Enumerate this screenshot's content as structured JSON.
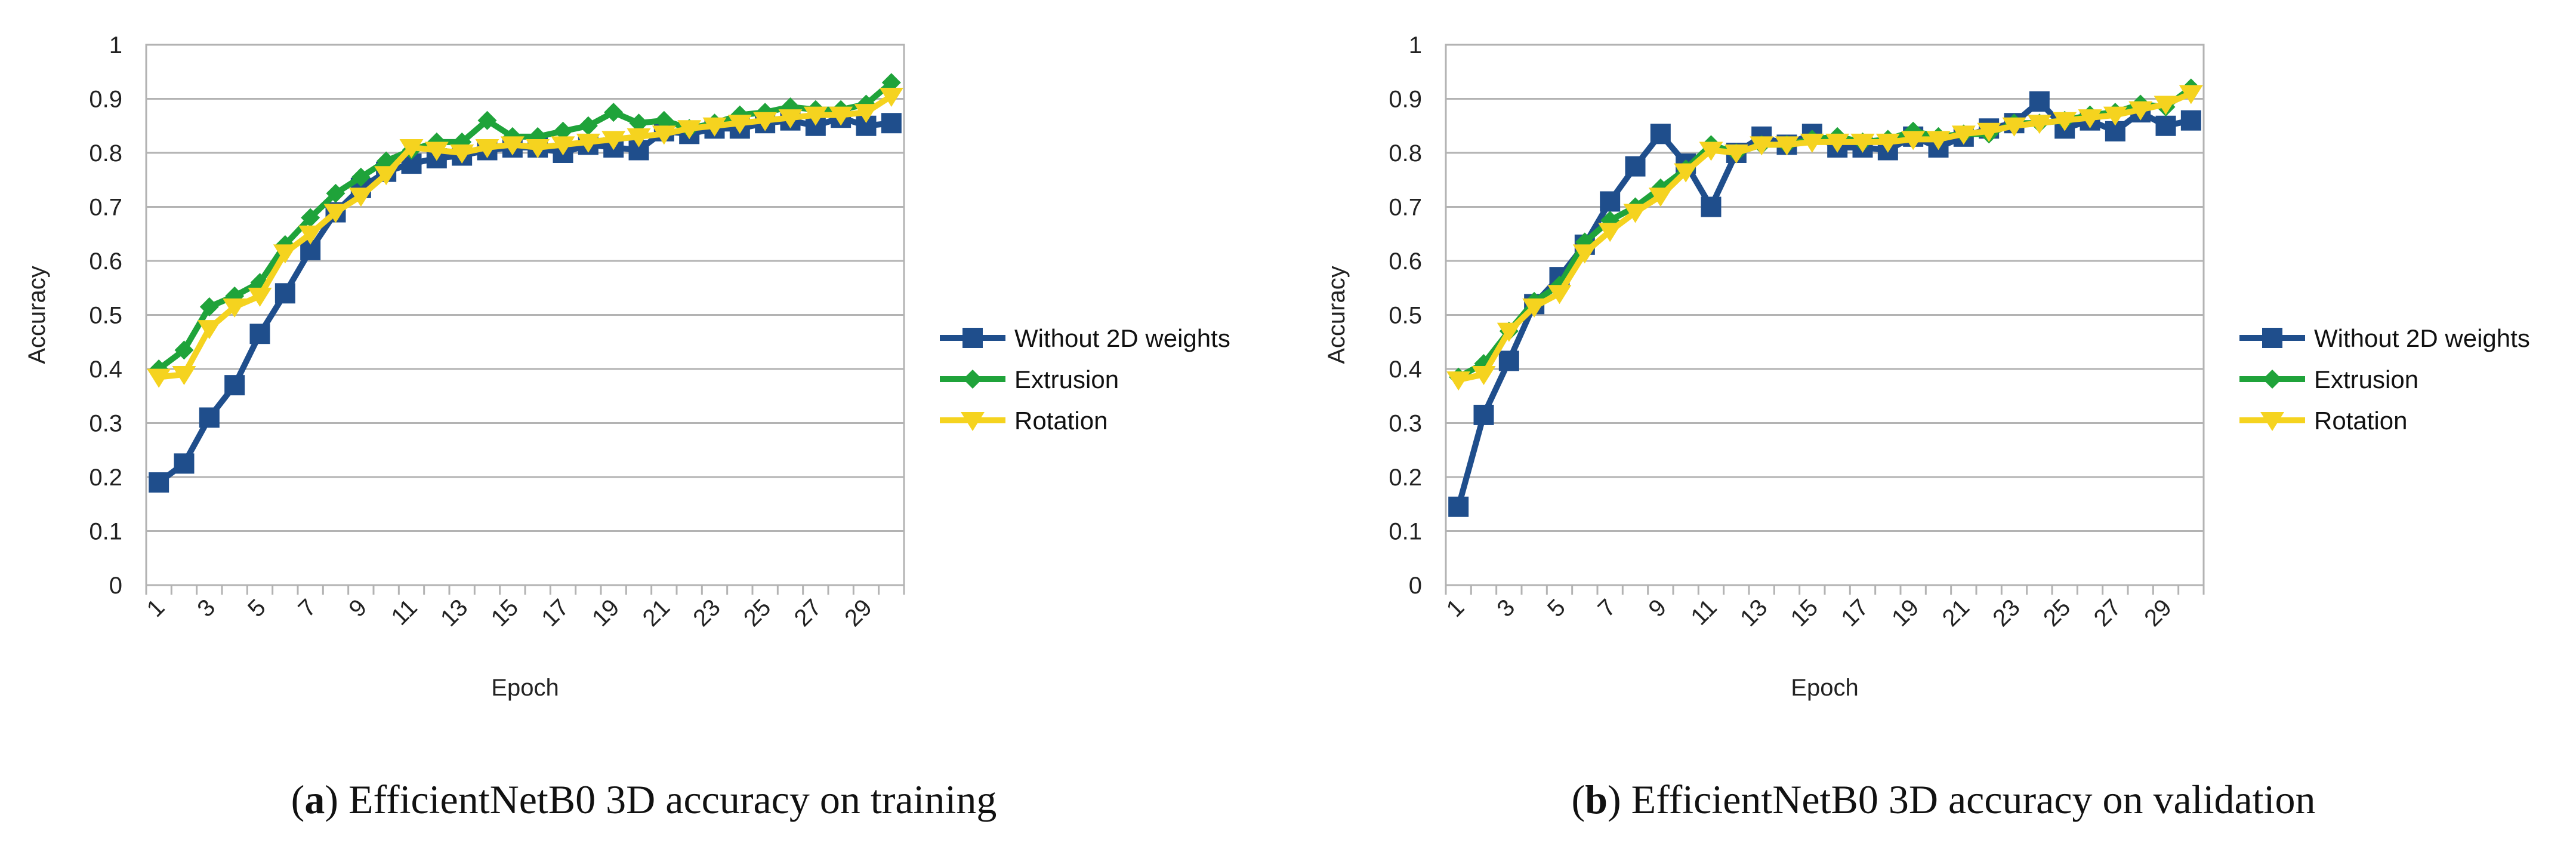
{
  "chart_data": [
    {
      "id": "a",
      "type": "line",
      "caption_letter": "a",
      "caption_text": "EfficientNetB0 3D accuracy on training",
      "xlabel": "Epoch",
      "ylabel": "Accuracy",
      "ylim": [
        0,
        1
      ],
      "yticks": [
        "0",
        "0.1",
        "0.2",
        "0.3",
        "0.4",
        "0.5",
        "0.6",
        "0.7",
        "0.8",
        "0.9",
        "1"
      ],
      "x": [
        1,
        2,
        3,
        4,
        5,
        6,
        7,
        8,
        9,
        10,
        11,
        12,
        13,
        14,
        15,
        16,
        17,
        18,
        19,
        20,
        21,
        22,
        23,
        24,
        25,
        26,
        27,
        28,
        29,
        30
      ],
      "xtick_labels": [
        "1",
        "3",
        "5",
        "7",
        "9",
        "11",
        "13",
        "15",
        "17",
        "19",
        "21",
        "23",
        "25",
        "27",
        "29"
      ],
      "grid": "horizontal",
      "legend_position": "right",
      "series": [
        {
          "name": "Without 2D weights",
          "color": "#1f4e8c",
          "marker": "square",
          "values": [
            0.19,
            0.225,
            0.31,
            0.37,
            0.465,
            0.54,
            0.62,
            0.69,
            0.735,
            0.765,
            0.78,
            0.79,
            0.795,
            0.805,
            0.81,
            0.81,
            0.8,
            0.815,
            0.81,
            0.805,
            0.84,
            0.835,
            0.845,
            0.845,
            0.855,
            0.86,
            0.85,
            0.865,
            0.85,
            0.855
          ]
        },
        {
          "name": "Extrusion",
          "color": "#1fa33a",
          "marker": "diamond",
          "values": [
            0.4,
            0.435,
            0.515,
            0.535,
            0.56,
            0.63,
            0.68,
            0.725,
            0.755,
            0.785,
            0.805,
            0.82,
            0.82,
            0.86,
            0.83,
            0.83,
            0.84,
            0.85,
            0.875,
            0.855,
            0.86,
            0.845,
            0.855,
            0.87,
            0.875,
            0.885,
            0.88,
            0.88,
            0.89,
            0.93
          ]
        },
        {
          "name": "Rotation",
          "color": "#f5d31f",
          "marker": "triangle",
          "values": [
            0.385,
            0.39,
            0.475,
            0.515,
            0.535,
            0.615,
            0.65,
            0.69,
            0.72,
            0.76,
            0.81,
            0.805,
            0.8,
            0.81,
            0.815,
            0.81,
            0.815,
            0.82,
            0.825,
            0.83,
            0.835,
            0.845,
            0.85,
            0.855,
            0.86,
            0.865,
            0.87,
            0.87,
            0.875,
            0.905
          ]
        }
      ]
    },
    {
      "id": "b",
      "type": "line",
      "caption_letter": "b",
      "caption_text": "EfficientNetB0 3D accuracy on validation",
      "xlabel": "Epoch",
      "ylabel": "Accuracy",
      "ylim": [
        0,
        1
      ],
      "yticks": [
        "0",
        "0.1",
        "0.2",
        "0.3",
        "0.4",
        "0.5",
        "0.6",
        "0.7",
        "0.8",
        "0.9",
        "1"
      ],
      "x": [
        1,
        2,
        3,
        4,
        5,
        6,
        7,
        8,
        9,
        10,
        11,
        12,
        13,
        14,
        15,
        16,
        17,
        18,
        19,
        20,
        21,
        22,
        23,
        24,
        25,
        26,
        27,
        28,
        29,
        30
      ],
      "xtick_labels": [
        "1",
        "3",
        "5",
        "7",
        "9",
        "11",
        "13",
        "15",
        "17",
        "19",
        "21",
        "23",
        "25",
        "27",
        "29"
      ],
      "grid": "horizontal",
      "legend_position": "right",
      "series": [
        {
          "name": "Without 2D weights",
          "color": "#1f4e8c",
          "marker": "square",
          "values": [
            0.145,
            0.315,
            0.415,
            0.52,
            0.57,
            0.63,
            0.71,
            0.775,
            0.835,
            0.78,
            0.7,
            0.8,
            0.83,
            0.815,
            0.835,
            0.81,
            0.81,
            0.805,
            0.83,
            0.81,
            0.83,
            0.845,
            0.855,
            0.895,
            0.845,
            0.86,
            0.84,
            0.875,
            0.85,
            0.86
          ]
        },
        {
          "name": "Extrusion",
          "color": "#1fa33a",
          "marker": "diamond",
          "values": [
            0.385,
            0.41,
            0.47,
            0.525,
            0.555,
            0.635,
            0.675,
            0.7,
            0.735,
            0.77,
            0.815,
            0.8,
            0.815,
            0.815,
            0.825,
            0.83,
            0.82,
            0.825,
            0.84,
            0.83,
            0.835,
            0.835,
            0.855,
            0.855,
            0.86,
            0.87,
            0.875,
            0.89,
            0.885,
            0.92
          ]
        },
        {
          "name": "Rotation",
          "color": "#f5d31f",
          "marker": "triangle",
          "values": [
            0.38,
            0.39,
            0.47,
            0.515,
            0.54,
            0.615,
            0.655,
            0.69,
            0.72,
            0.765,
            0.805,
            0.8,
            0.815,
            0.815,
            0.82,
            0.82,
            0.82,
            0.82,
            0.825,
            0.825,
            0.835,
            0.84,
            0.85,
            0.855,
            0.86,
            0.865,
            0.87,
            0.88,
            0.89,
            0.91
          ]
        }
      ]
    }
  ]
}
